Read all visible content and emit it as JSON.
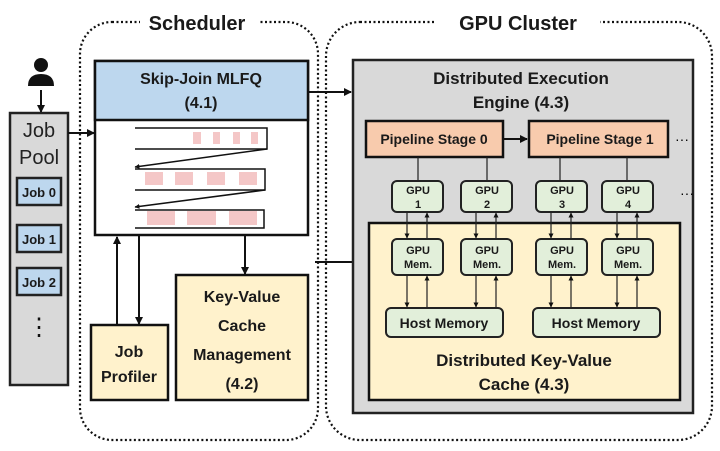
{
  "scheduler": {
    "title": "Scheduler",
    "mlfq": {
      "title": "Skip-Join MLFQ",
      "section": "(4.1)"
    },
    "job_profiler": {
      "line1": "Job",
      "line2": "Profiler"
    },
    "kv_cache_mgmt": {
      "line1": "Key-Value",
      "line2": "Cache",
      "line3": "Management",
      "section": "(4.2)"
    }
  },
  "job_pool": {
    "line1": "Job",
    "line2": "Pool",
    "jobs": [
      "Job 0",
      "Job 1",
      "Job 2"
    ],
    "more": "⋮"
  },
  "gpu_cluster": {
    "title": "GPU Cluster",
    "engine": {
      "line1": "Distributed Execution",
      "line2": "Engine (4.3)"
    },
    "stages": [
      "Pipeline Stage 0",
      "Pipeline Stage 1"
    ],
    "ellipsis": "···",
    "gpus": [
      {
        "line1": "GPU",
        "line2": "1"
      },
      {
        "line1": "GPU",
        "line2": "2"
      },
      {
        "line1": "GPU",
        "line2": "3"
      },
      {
        "line1": "GPU",
        "line2": "4"
      }
    ],
    "gpu_mem": {
      "line1": "GPU",
      "line2": "Mem."
    },
    "host_memory": [
      "Host Memory",
      "Host Memory"
    ],
    "dkv_cache": {
      "line1": "Distributed Key-Value",
      "line2": "Cache (4.3)"
    }
  },
  "colors": {
    "blue": "#bdd7ee",
    "gray": "#d9d9d9",
    "yellow": "#fff2cc",
    "orange": "#f8cbad",
    "green": "#e2efda",
    "pink": "#f4c7c7"
  }
}
